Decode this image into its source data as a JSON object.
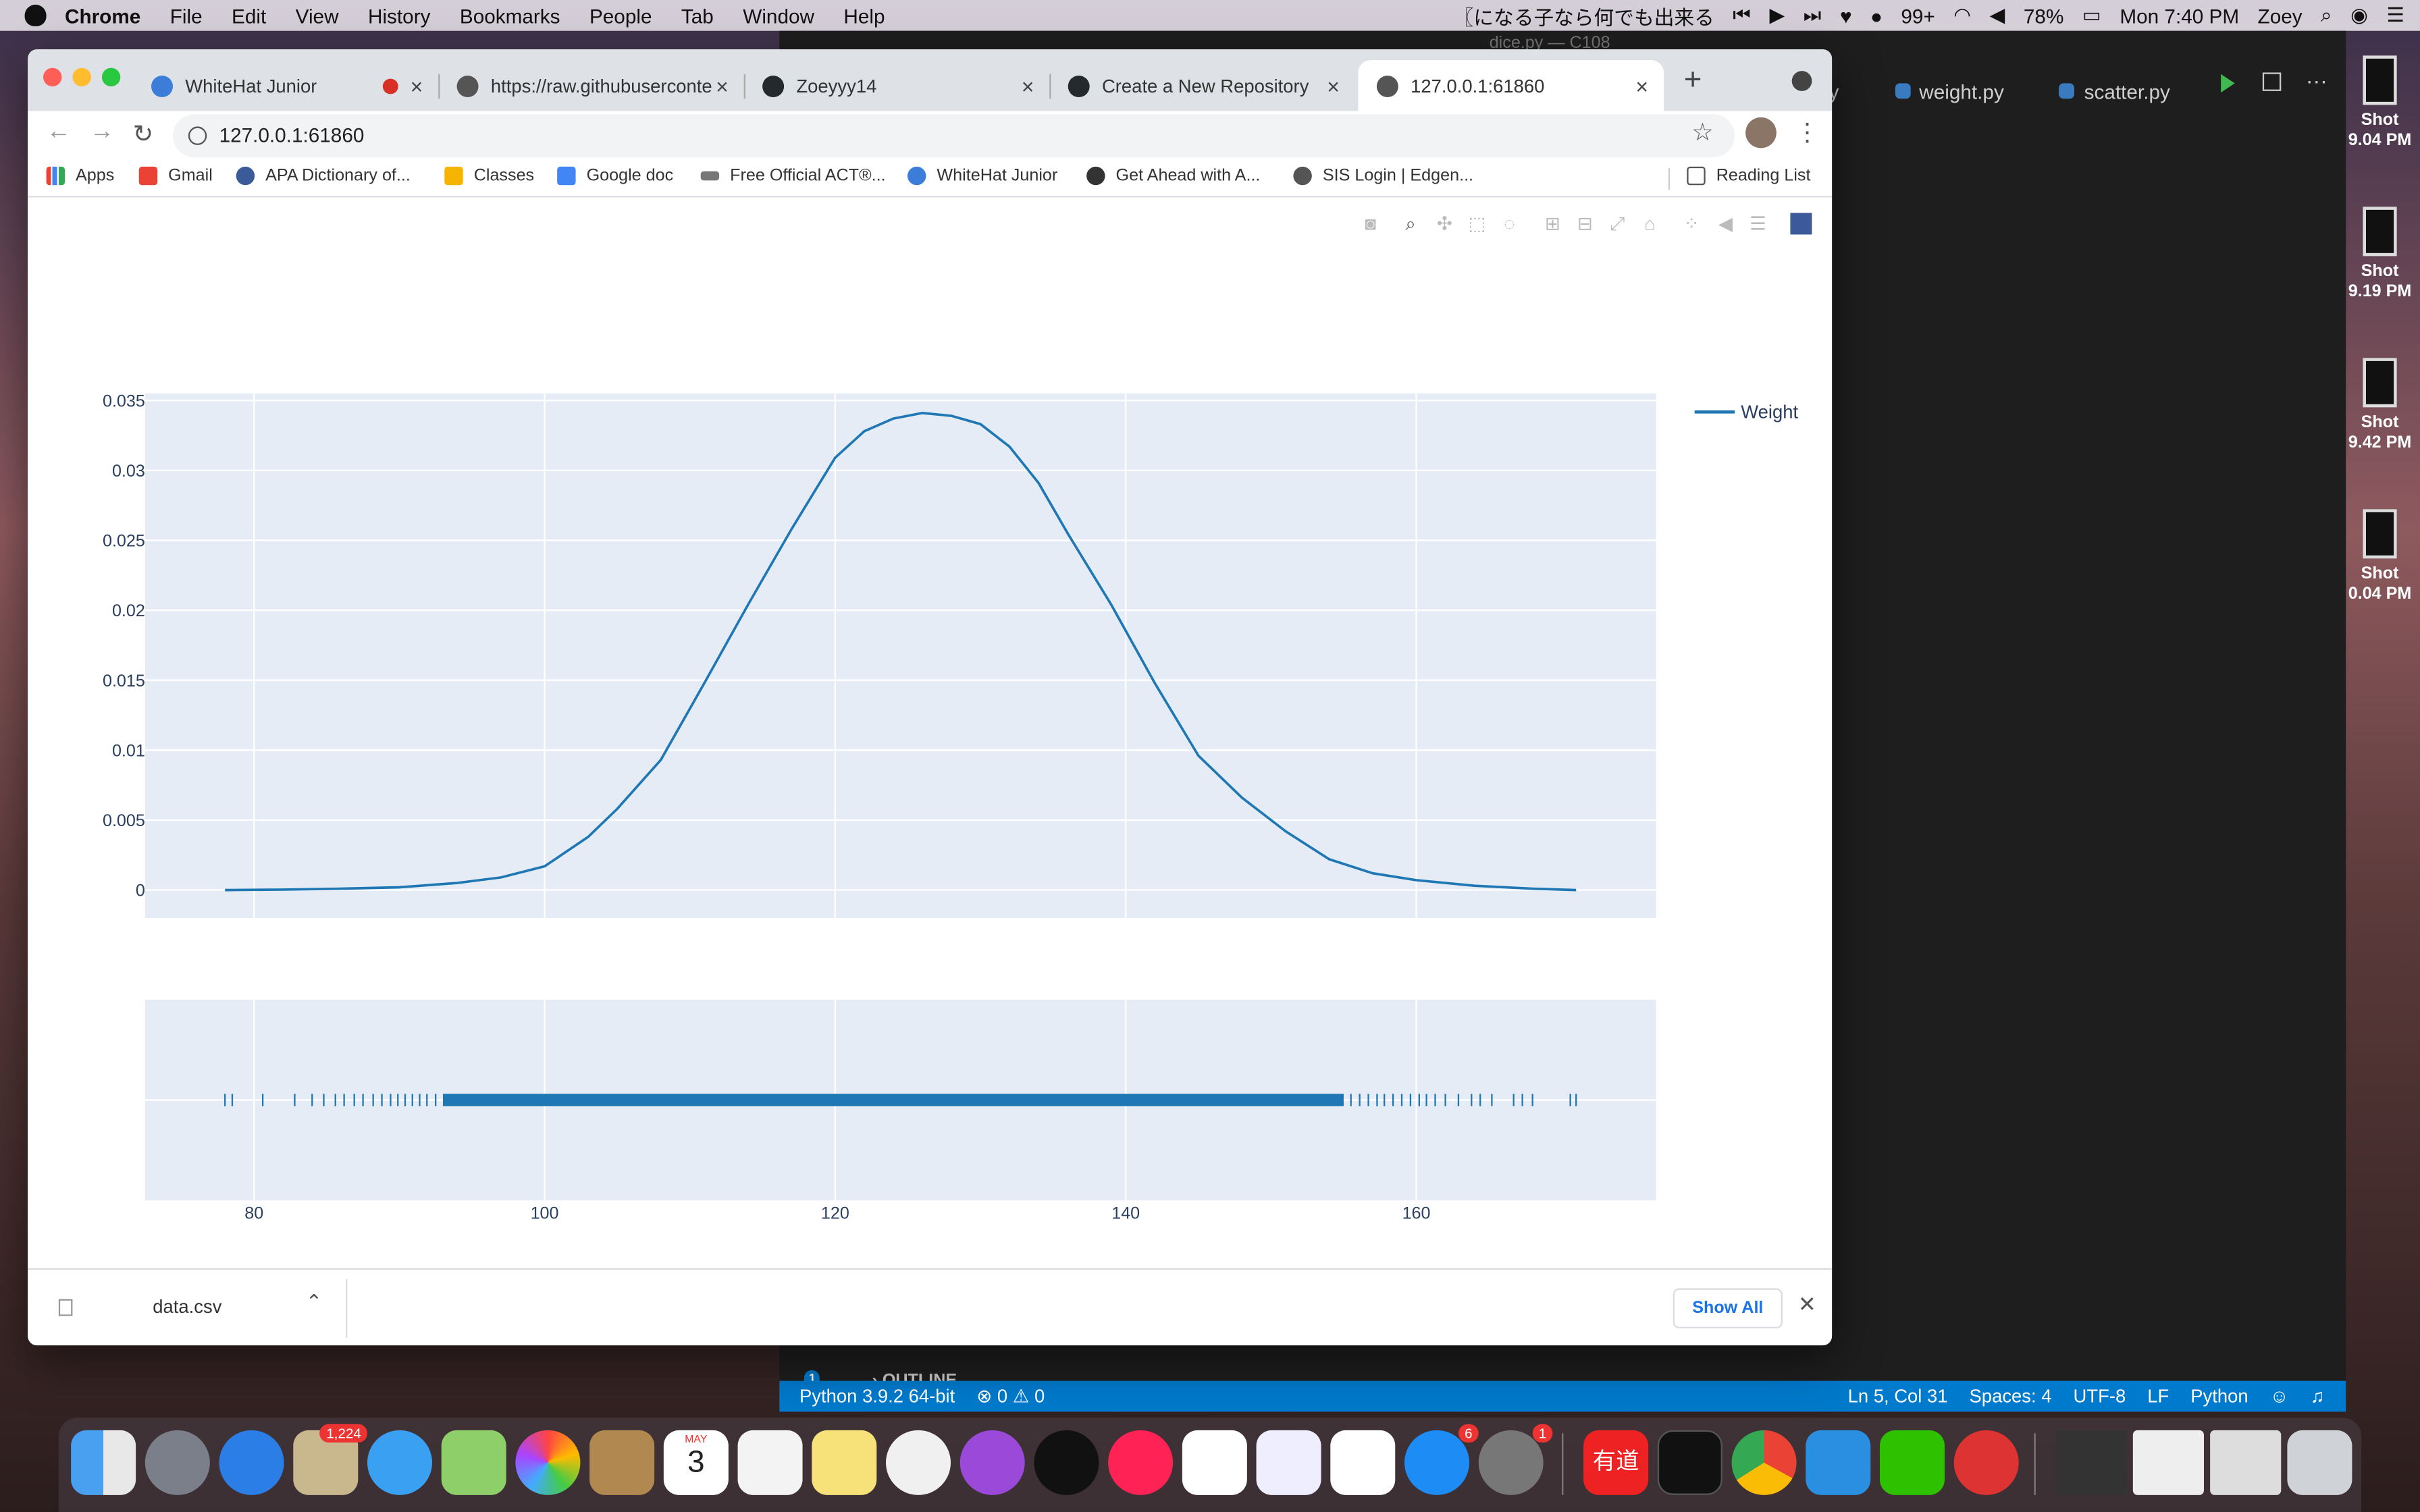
{
  "menubar": {
    "items": [
      "Chrome",
      "File",
      "Edit",
      "View",
      "History",
      "Bookmarks",
      "People",
      "Tab",
      "Window",
      "Help"
    ],
    "status_text": "〖になる子なら何でも出来る",
    "badge_count": "99+",
    "battery": "78%",
    "clock": "Mon 7:40 PM",
    "user": "Zoey"
  },
  "editor": {
    "window_title": "dice.py — C108",
    "tabs": [
      "weight.py",
      "scatter.py"
    ],
    "partial_tab": "y",
    "outline_label": "OUTLINE",
    "outline_badge": "1",
    "status": {
      "interpreter": "Python 3.9.2 64-bit",
      "errors": "0",
      "warnings": "0",
      "position": "Ln 5, Col 31",
      "spaces": "Spaces: 4",
      "encoding": "UTF-8",
      "eol": "LF",
      "language": "Python"
    }
  },
  "desktop_shots": [
    {
      "line1": "Shot",
      "line2": "9.04 PM"
    },
    {
      "line1": "Shot",
      "line2": "9.19 PM"
    },
    {
      "line1": "Shot",
      "line2": "9.42 PM"
    },
    {
      "line1": "Shot",
      "line2": "0.04 PM"
    }
  ],
  "browser": {
    "tabs": [
      {
        "label": "WhiteHat Junior",
        "active": false
      },
      {
        "label": "https://raw.githubuserconten",
        "active": false
      },
      {
        "label": "Zoeyyy14",
        "active": false
      },
      {
        "label": "Create a New Repository",
        "active": false
      },
      {
        "label": "127.0.0.1:61860",
        "active": true
      }
    ],
    "url": "127.0.0.1:61860",
    "bookmarks": [
      "Apps",
      "Gmail",
      "APA Dictionary of...",
      "Classes",
      "Google doc",
      "Free Official ACT®...",
      "WhiteHat Junior",
      "Get Ahead with A...",
      "SIS Login | Edgen..."
    ],
    "reading_list": "Reading List",
    "download": {
      "filename": "data.csv",
      "show_all": "Show All"
    }
  },
  "modebar_icons": [
    "camera-icon",
    "zoom-icon",
    "pan-icon",
    "box-select-icon",
    "lasso-icon",
    "zoom-in-icon",
    "zoom-out-icon",
    "autoscale-icon",
    "reset-axes-icon",
    "spike-lines-icon",
    "hover-closest-icon",
    "hover-compare-icon",
    "plotly-logo-icon"
  ],
  "chart_data": {
    "type": "line",
    "subtype": "distplot (kde curve + rug plot)",
    "title": "",
    "xlabel": "",
    "ylabel": "",
    "xlim": [
      72.5,
      176.5
    ],
    "ylim": [
      -0.002,
      0.0355
    ],
    "x_ticks": [
      "80",
      "100",
      "120",
      "140",
      "160"
    ],
    "y_ticks": [
      "0",
      "0.005",
      "0.01",
      "0.015",
      "0.02",
      "0.025",
      "0.03",
      "0.035"
    ],
    "legend_position": "top-right",
    "grid": true,
    "series": [
      {
        "name": "Weight",
        "color": "#1f77b4",
        "x": [
          78,
          82,
          86,
          90,
          94,
          97,
          100,
          103,
          105,
          108,
          111,
          114,
          117,
          120,
          122,
          124,
          126,
          128,
          130,
          132,
          134,
          136,
          139,
          142,
          145,
          148,
          151,
          154,
          157,
          160,
          164,
          168,
          171
        ],
        "y": [
          0.0,
          3e-05,
          0.0001,
          0.0002,
          0.0005,
          0.0009,
          0.0017,
          0.0038,
          0.0058,
          0.0093,
          0.0148,
          0.0204,
          0.0258,
          0.0309,
          0.0328,
          0.0337,
          0.0341,
          0.0339,
          0.0333,
          0.0317,
          0.0291,
          0.0255,
          0.0204,
          0.0148,
          0.0096,
          0.0066,
          0.0042,
          0.0022,
          0.0012,
          0.0007,
          0.0003,
          0.0001,
          0.0
        ]
      }
    ],
    "rug": {
      "x_ticks": [
        "80",
        "100",
        "120",
        "140",
        "160"
      ],
      "sparse_values": [
        78,
        78.5,
        80.6,
        82.8,
        84,
        84.8,
        85.6,
        86.2,
        86.9,
        87.5,
        88.2,
        88.8,
        89.4,
        89.9,
        90.4,
        90.9,
        91.4,
        91.9,
        92.5,
        155.5,
        156.1,
        156.7,
        157.3,
        157.8,
        158.4,
        159,
        159.6,
        160.2,
        160.7,
        161.3,
        162,
        162.9,
        163.8,
        164.4,
        165.2,
        166.7,
        167.3,
        168,
        170.6,
        171
      ],
      "dense_range": [
        93,
        155
      ]
    }
  },
  "dock_icons": [
    "finder-icon",
    "launchpad-icon",
    "safari-icon",
    "mail-icon",
    "messages-icon",
    "maps-icon",
    "photos-icon",
    "contacts-icon",
    "calendar-icon",
    "reminders-icon",
    "notes-icon",
    "music-icon",
    "podcasts-icon",
    "tv-icon",
    "news-icon",
    "numbers-icon",
    "keynote-icon",
    "pages-icon",
    "app-store-icon",
    "system-preferences-icon",
    "youdao-icon",
    "terminal-icon",
    "chrome-icon",
    "vscode-icon",
    "wechat-icon",
    "netease-music-icon"
  ],
  "dock_badges": {
    "mail": "1,224",
    "app_store": "6",
    "system_preferences": "1"
  },
  "calendar_month": "MAY",
  "calendar_day": "3",
  "youdao_label": "有道"
}
